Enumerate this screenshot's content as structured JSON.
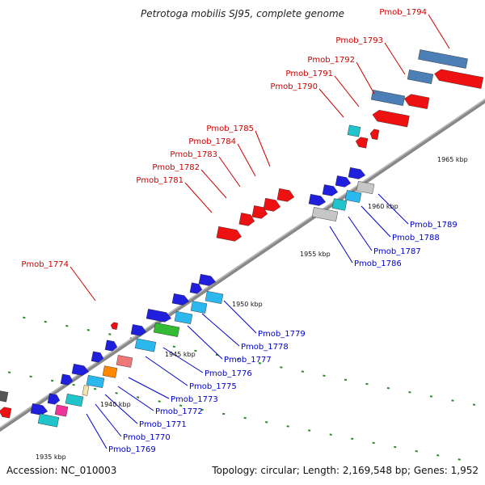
{
  "title": "Petrotoga mobilis SJ95, complete genome",
  "footer": {
    "accession": "Accession: NC_010003",
    "summary": "Topology: circular; Length: 2,169,548 bp; Genes: 1,952"
  },
  "scale_labels": [
    "1935 kbp",
    "1940 kbp",
    "1945 kbp",
    "1950 kbp",
    "1955 kbp",
    "1960 kbp",
    "1965 kbp"
  ],
  "colors": {
    "red": "#ee1111",
    "blue": "#1f1fdd",
    "cyan": "#22c4cc",
    "skyblue": "#2ab8ee",
    "green": "#33bb33",
    "magenta": "#ee3399",
    "orange": "#ff8800",
    "pink": "#ee7777",
    "steel": "#4b7fb5",
    "gray": "#c6c6c6",
    "darkgray": "#555555",
    "label_red": "#cc0000",
    "label_blue": "#0000cc"
  },
  "gene_labels": {
    "reverse": [
      "Pmob_1774",
      "Pmob_1781",
      "Pmob_1782",
      "Pmob_1783",
      "Pmob_1784",
      "Pmob_1785",
      "Pmob_1790",
      "Pmob_1791",
      "Pmob_1792",
      "Pmob_1793",
      "Pmob_1794"
    ],
    "forward": [
      "Pmob_1769",
      "Pmob_1770",
      "Pmob_1771",
      "Pmob_1772",
      "Pmob_1773",
      "Pmob_1775",
      "Pmob_1776",
      "Pmob_1777",
      "Pmob_1778",
      "Pmob_1779",
      "Pmob_1786",
      "Pmob_1787",
      "Pmob_1788",
      "Pmob_1789"
    ]
  }
}
